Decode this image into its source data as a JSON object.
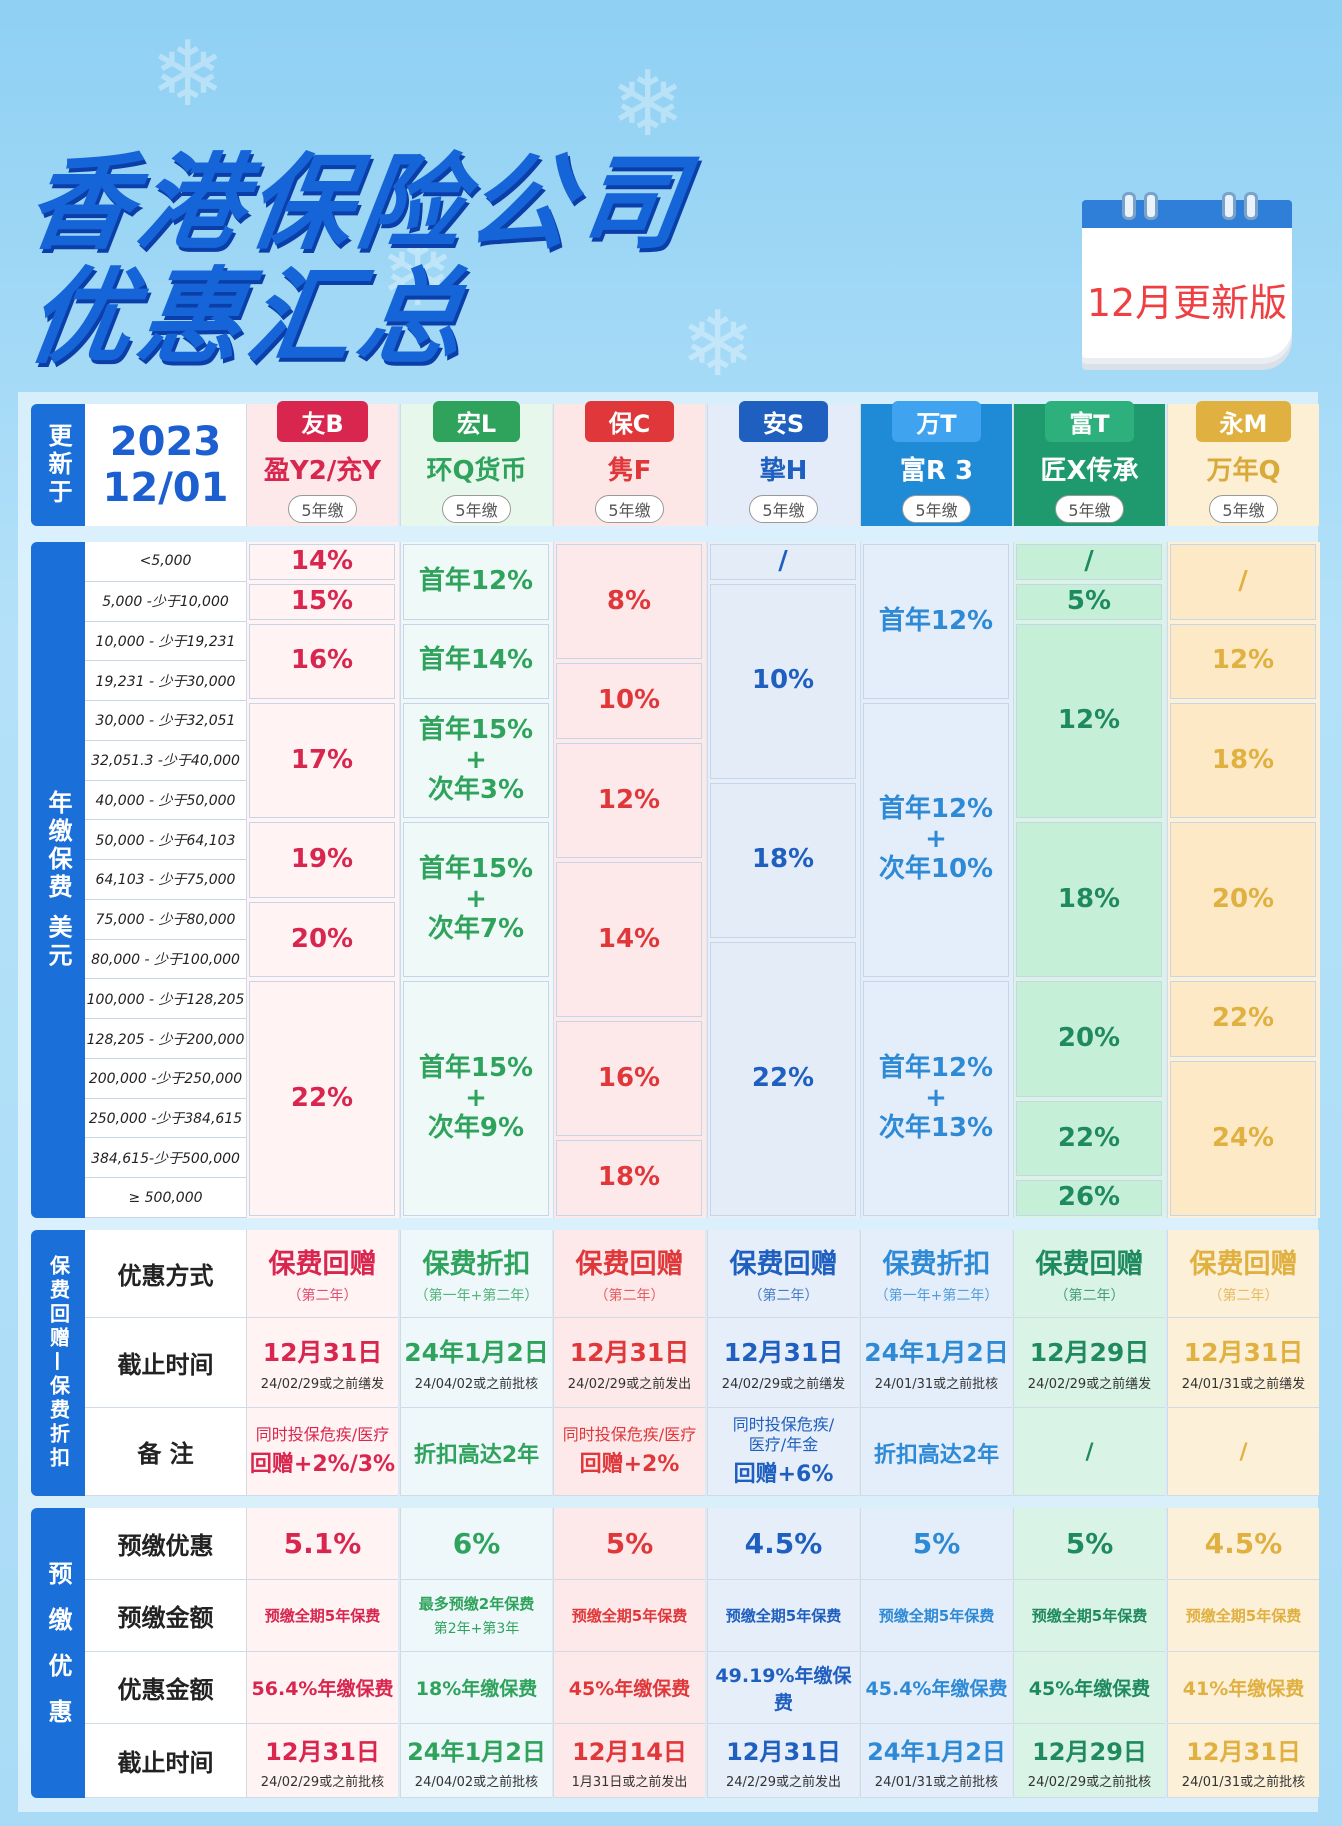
{
  "page": {
    "title_line1": "香港保险公司",
    "title_line2": "优惠汇总",
    "calendar_label": "12月更新版"
  },
  "header": {
    "update_label": "更新于",
    "date_year": "2023",
    "date_day": "12/01",
    "companies": [
      {
        "badge": "友B",
        "product": "盈Y2/充Y",
        "term": "5年缴",
        "color": "#d9264e",
        "bg": "#fde8ea"
      },
      {
        "badge": "宏L",
        "product": "环Q货币",
        "term": "5年缴",
        "color": "#2fa35c",
        "bg": "#e8f7ec"
      },
      {
        "badge": "保C",
        "product": "隽F",
        "term": "5年缴",
        "color": "#e0383a",
        "bg": "#fde6e6"
      },
      {
        "badge": "安S",
        "product": "挚H",
        "term": "5年缴",
        "color": "#1f5fbf",
        "bg": "#e3ecf8"
      },
      {
        "badge": "万T",
        "product": "富R 3",
        "term": "5年缴",
        "color": "#ffffff",
        "bg": "#1f8ad6"
      },
      {
        "badge": "富T",
        "product": "匠X传承",
        "term": "5年缴",
        "color": "#ffffff",
        "bg": "#1f9a6e"
      },
      {
        "badge": "永M",
        "product": "万年Q",
        "term": "5年缴",
        "color": "#d9a93a",
        "bg": "#fcefd4"
      }
    ]
  },
  "premium_section": {
    "label": "年缴保费  美元",
    "tiers": [
      "<5,000",
      "5,000 -少于10,000",
      "10,000 - 少于19,231",
      "19,231 - 少于30,000",
      "30,000 - 少于32,051",
      "32,051.3 -少于40,000",
      "40,000 - 少于50,000",
      "50,000 - 少于64,103",
      "64,103 - 少于75,000",
      "75,000 - 少于80,000",
      "80,000 - 少于100,000",
      "100,000 - 少于128,205",
      "128,205 - 少于200,000",
      "200,000 -少于250,000",
      "250,000 -少于384,615",
      "384,615-少于500,000",
      "≥ 500,000"
    ],
    "columns": [
      [
        {
          "rows": 1,
          "text": "14%"
        },
        {
          "rows": 1,
          "text": "15%"
        },
        {
          "rows": 2,
          "text": "16%"
        },
        {
          "rows": 3,
          "text": "17%"
        },
        {
          "rows": 2,
          "text": "19%"
        },
        {
          "rows": 2,
          "text": "20%"
        },
        {
          "rows": 6,
          "text": "22%"
        }
      ],
      [
        {
          "rows": 2,
          "text": "首年12%"
        },
        {
          "rows": 2,
          "text": "首年14%"
        },
        {
          "rows": 3,
          "text": "首年15%\n+\n次年3%"
        },
        {
          "rows": 4,
          "text": "首年15%\n+\n次年7%"
        },
        {
          "rows": 6,
          "text": "首年15%\n+\n次年9%"
        }
      ],
      [
        {
          "rows": 3,
          "text": "8%"
        },
        {
          "rows": 2,
          "text": "10%"
        },
        {
          "rows": 3,
          "text": "12%"
        },
        {
          "rows": 4,
          "text": "14%"
        },
        {
          "rows": 3,
          "text": "16%"
        },
        {
          "rows": 2,
          "text": "18%"
        }
      ],
      [
        {
          "rows": 1,
          "text": "/"
        },
        {
          "rows": 5,
          "text": "10%"
        },
        {
          "rows": 4,
          "text": "18%"
        },
        {
          "rows": 7,
          "text": "22%"
        }
      ],
      [
        {
          "rows": 4,
          "text": "首年12%"
        },
        {
          "rows": 7,
          "text": "首年12%\n+\n次年10%"
        },
        {
          "rows": 6,
          "text": "首年12%\n+\n次年13%"
        }
      ],
      [
        {
          "rows": 1,
          "text": "/"
        },
        {
          "rows": 1,
          "text": "5%"
        },
        {
          "rows": 5,
          "text": "12%"
        },
        {
          "rows": 4,
          "text": "18%"
        },
        {
          "rows": 3,
          "text": "20%"
        },
        {
          "rows": 2,
          "text": "22%"
        },
        {
          "rows": 1,
          "text": "26%"
        }
      ],
      [
        {
          "rows": 2,
          "text": "/"
        },
        {
          "rows": 2,
          "text": "12%"
        },
        {
          "rows": 3,
          "text": "18%"
        },
        {
          "rows": 4,
          "text": "20%"
        },
        {
          "rows": 2,
          "text": "22%"
        },
        {
          "rows": 4,
          "text": "24%"
        }
      ]
    ]
  },
  "offer_section": {
    "label": "保费回赠—保费折扣",
    "row_labels": [
      "优惠方式",
      "截止时间",
      "备 注"
    ],
    "method": [
      {
        "main": "保费回赠",
        "sub": "（第二年）"
      },
      {
        "main": "保费折扣",
        "sub": "（第一年+第二年）"
      },
      {
        "main": "保费回赠",
        "sub": "（第二年）"
      },
      {
        "main": "保费回赠",
        "sub": "（第二年）"
      },
      {
        "main": "保费折扣",
        "sub": "（第一年+第二年）"
      },
      {
        "main": "保费回赠",
        "sub": "（第二年）"
      },
      {
        "main": "保费回赠",
        "sub": "（第二年）"
      }
    ],
    "deadline": [
      {
        "main": "12月31日",
        "sub": "24/02/29或之前缮发"
      },
      {
        "main": "24年1月2日",
        "sub": "24/04/02或之前批核"
      },
      {
        "main": "12月31日",
        "sub": "24/02/29或之前发出"
      },
      {
        "main": "12月31日",
        "sub": "24/02/29或之前缮发"
      },
      {
        "main": "24年1月2日",
        "sub": "24/01/31或之前批核"
      },
      {
        "main": "12月29日",
        "sub": "24/02/29或之前缮发"
      },
      {
        "main": "12月31日",
        "sub": "24/01/31或之前缮发"
      }
    ],
    "notes": [
      {
        "line1": "同时投保危疾/医疗",
        "line2": "回赠+2%/3%"
      },
      {
        "line1": "",
        "line2": "折扣高达2年"
      },
      {
        "line1": "同时投保危疾/医疗",
        "line2": "回赠+2%"
      },
      {
        "line1": "同时投保危疾/\n医疗/年金",
        "line2": "回赠+6%"
      },
      {
        "line1": "",
        "line2": "折扣高达2年"
      },
      {
        "line1": "",
        "line2": "/"
      },
      {
        "line1": "",
        "line2": "/"
      }
    ]
  },
  "prepay_section": {
    "label": "预缴优惠",
    "row_labels": [
      "预缴优惠",
      "预缴金额",
      "优惠金额",
      "截止时间"
    ],
    "rate": [
      "5.1%",
      "6%",
      "5%",
      "4.5%",
      "5%",
      "5%",
      "4.5%"
    ],
    "amount": [
      {
        "main": "预缴全期5年保费",
        "sub": ""
      },
      {
        "main": "最多预缴2年保费",
        "sub": "第2年+第3年"
      },
      {
        "main": "预缴全期5年保费",
        "sub": ""
      },
      {
        "main": "预缴全期5年保费",
        "sub": ""
      },
      {
        "main": "预缴全期5年保费",
        "sub": ""
      },
      {
        "main": "预缴全期5年保费",
        "sub": ""
      },
      {
        "main": "预缴全期5年保费",
        "sub": ""
      }
    ],
    "discount": [
      "56.4%年缴保费",
      "18%年缴保费",
      "45%年缴保费",
      "49.19%年缴保费",
      "45.4%年缴保费",
      "45%年缴保费",
      "41%年缴保费"
    ],
    "deadline": [
      {
        "main": "12月31日",
        "sub": "24/02/29或之前批核"
      },
      {
        "main": "24年1月2日",
        "sub": "24/04/02或之前批核"
      },
      {
        "main": "12月14日",
        "sub": "1月31日或之前发出"
      },
      {
        "main": "12月31日",
        "sub": "24/2/29或之前发出"
      },
      {
        "main": "24年1月2日",
        "sub": "24/01/31或之前批核"
      },
      {
        "main": "12月29日",
        "sub": "24/02/29或之前批核"
      },
      {
        "main": "12月31日",
        "sub": "24/01/31或之前批核"
      }
    ]
  },
  "colors": {
    "text": [
      "#d9264e",
      "#2fa35c",
      "#e0383a",
      "#1f5fbf",
      "#2f8ad6",
      "#1f8a5e",
      "#e0b040"
    ],
    "body_bg": [
      "#fff3f4",
      "#eef8fb",
      "#fde9ea",
      "#e6eef9",
      "#e3eefa",
      "#d9f3e6",
      "#fdf0d9"
    ],
    "cell_bg": [
      "#fff3f4",
      "#effaf8",
      "#fde9ea",
      "#e4ecf8",
      "#e4eefb",
      "#c6efd8",
      "#fde9c6"
    ]
  }
}
